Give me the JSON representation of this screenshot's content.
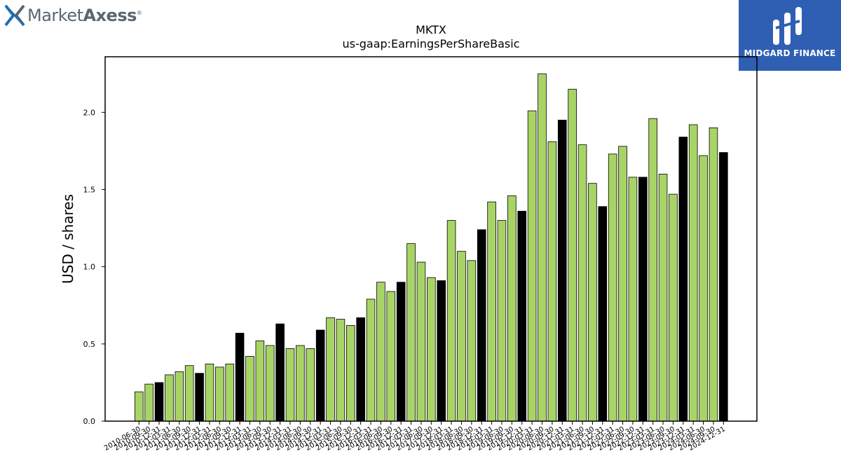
{
  "brand": {
    "left_logo_prefix": "Market",
    "left_logo_suffix": "Axess",
    "left_logo_mark": "®",
    "right_logo_text": "MIDGARD FINANCE"
  },
  "colors": {
    "bar_normal": "#a8d466",
    "bar_highlight": "#000000",
    "right_logo_bg": "#2f5fb3",
    "left_logo_x_blue": "#1b6fb5",
    "left_logo_x_gray": "#5b6670"
  },
  "chart_data": {
    "type": "bar",
    "title": "MKTX",
    "subtitle": "us-gaap:EarningsPerShareBasic",
    "xlabel": "",
    "ylabel": "USD / shares",
    "ylim": [
      0,
      2.36
    ],
    "yticks": [
      "0.0",
      "0.5",
      "1.0",
      "1.5",
      "2.0"
    ],
    "grid": false,
    "legend": "none",
    "categories": [
      "2010-06-30",
      "2010-09-30",
      "2010-12-31",
      "2011-03-31",
      "2011-06-30",
      "2011-09-30",
      "2011-12-31",
      "2012-03-31",
      "2012-06-30",
      "2012-09-30",
      "2012-12-31",
      "2013-03-31",
      "2013-06-30",
      "2013-09-30",
      "2013-12-31",
      "2014-03-31",
      "2014-06-30",
      "2014-09-30",
      "2014-12-31",
      "2015-03-31",
      "2015-06-30",
      "2015-09-30",
      "2015-12-31",
      "2016-03-31",
      "2016-06-30",
      "2016-09-30",
      "2016-12-31",
      "2017-03-31",
      "2017-06-30",
      "2017-09-30",
      "2017-12-31",
      "2018-03-31",
      "2018-06-30",
      "2018-09-30",
      "2018-12-31",
      "2019-03-31",
      "2019-06-30",
      "2019-09-30",
      "2019-12-31",
      "2020-03-31",
      "2020-06-30",
      "2020-09-30",
      "2020-12-31",
      "2021-03-31",
      "2021-06-30",
      "2021-09-30",
      "2021-12-31",
      "2022-03-31",
      "2022-06-30",
      "2022-09-30",
      "2022-12-31",
      "2023-03-31",
      "2023-06-30",
      "2023-09-30",
      "2023-12-31",
      "2024-03-31",
      "2024-06-30",
      "2024-09-30",
      "2024-12-31"
    ],
    "values": [
      0.19,
      0.24,
      0.25,
      0.3,
      0.32,
      0.36,
      0.31,
      0.37,
      0.35,
      0.37,
      0.57,
      0.42,
      0.52,
      0.49,
      0.63,
      0.47,
      0.49,
      0.47,
      0.59,
      0.67,
      0.66,
      0.62,
      0.67,
      0.79,
      0.9,
      0.84,
      0.9,
      1.15,
      1.03,
      0.93,
      0.91,
      1.3,
      1.1,
      1.04,
      1.24,
      1.42,
      1.3,
      1.46,
      1.36,
      2.01,
      2.25,
      1.81,
      1.95,
      2.15,
      1.79,
      1.54,
      1.39,
      1.73,
      1.78,
      1.58,
      1.58,
      1.96,
      1.6,
      1.47,
      1.84,
      1.92,
      1.72,
      1.9,
      1.74
    ],
    "highlighted": [
      false,
      false,
      true,
      false,
      false,
      false,
      true,
      false,
      false,
      false,
      true,
      false,
      false,
      false,
      true,
      false,
      false,
      false,
      true,
      false,
      false,
      false,
      true,
      false,
      false,
      false,
      true,
      false,
      false,
      false,
      true,
      false,
      false,
      false,
      true,
      false,
      false,
      false,
      true,
      false,
      false,
      false,
      true,
      false,
      false,
      false,
      true,
      false,
      false,
      false,
      true,
      false,
      false,
      false,
      true,
      false,
      false,
      false,
      true
    ]
  }
}
